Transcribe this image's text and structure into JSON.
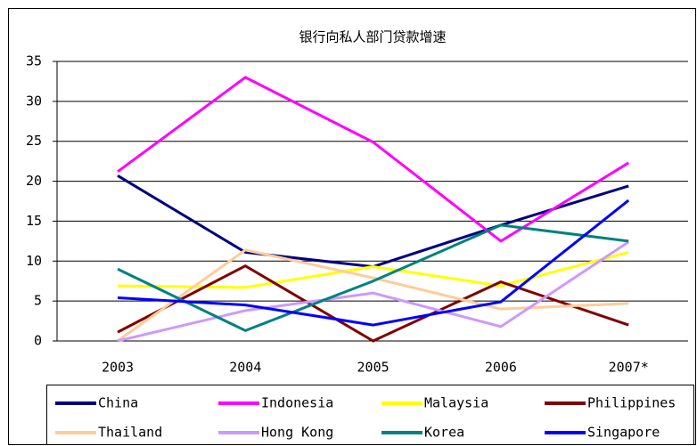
{
  "chart_data": {
    "type": "line",
    "title": "银行向私人部门贷款增速",
    "categories": [
      "2003",
      "2004",
      "2005",
      "2006",
      "2007*"
    ],
    "series": [
      {
        "name": "China",
        "color": "#000080",
        "values": [
          20.7,
          11.1,
          9.3,
          14.5,
          19.4
        ]
      },
      {
        "name": "Indonesia",
        "color": "#ff00ff",
        "values": [
          21.2,
          33.0,
          24.9,
          12.5,
          22.3
        ]
      },
      {
        "name": "Malaysia",
        "color": "#ffff00",
        "values": [
          6.9,
          6.7,
          9.3,
          6.9,
          11.1
        ]
      },
      {
        "name": "Philippines",
        "color": "#800000",
        "values": [
          1.1,
          9.4,
          0,
          7.4,
          2.0
        ]
      },
      {
        "name": "Thailand",
        "color": "#ffcc99",
        "values": [
          0,
          11.4,
          7.9,
          4.0,
          4.7
        ]
      },
      {
        "name": "Hong Kong",
        "color": "#cc99ff",
        "values": [
          0,
          3.8,
          6.0,
          1.8,
          12.4
        ]
      },
      {
        "name": "Korea",
        "color": "#008080",
        "values": [
          9.0,
          1.3,
          7.5,
          14.5,
          12.5
        ]
      },
      {
        "name": "Singapore",
        "color": "#0000ff",
        "values": [
          5.4,
          4.5,
          2.0,
          4.9,
          17.6
        ]
      }
    ],
    "ylim": [
      0,
      35
    ],
    "yticks": [
      0,
      5,
      10,
      15,
      20,
      25,
      30,
      35
    ],
    "grid": true,
    "legend": "bottom"
  }
}
